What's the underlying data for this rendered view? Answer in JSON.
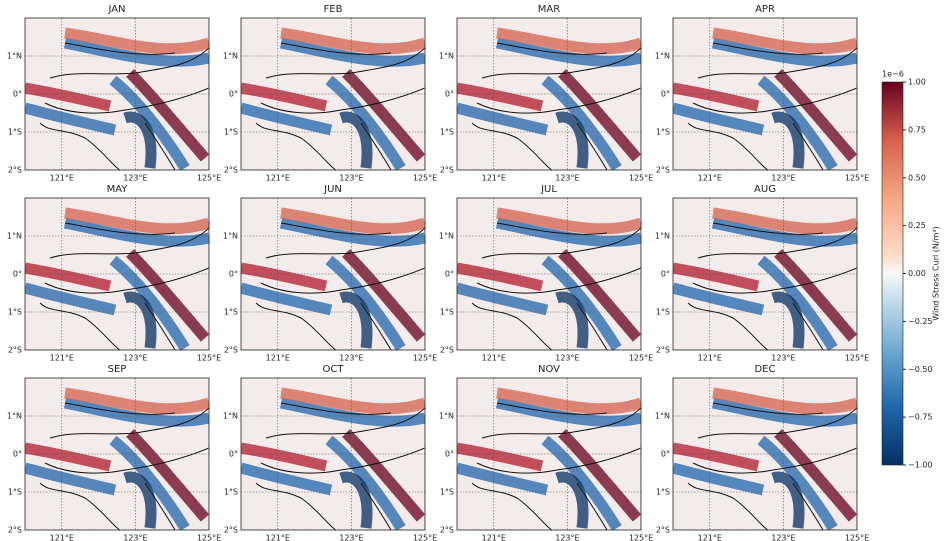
{
  "chart_data": {
    "type": "map-grid",
    "panels": [
      "JAN",
      "FEB",
      "MAR",
      "APR",
      "MAY",
      "JUN",
      "JUL",
      "AUG",
      "SEP",
      "OCT",
      "NOV",
      "DEC"
    ],
    "xlim": [
      120,
      125
    ],
    "xticks": [
      {
        "value": 121,
        "label": "121°E"
      },
      {
        "value": 123,
        "label": "123°E"
      },
      {
        "value": 125,
        "label": "125°E"
      }
    ],
    "ylim": [
      -2,
      2
    ],
    "yticks": [
      {
        "value": -2,
        "label": "2°S"
      },
      {
        "value": -1,
        "label": "1°S"
      },
      {
        "value": 0,
        "label": "0°"
      },
      {
        "value": 1,
        "label": "1°N"
      }
    ],
    "colorbar": {
      "label": "Wind Stress Curl (N/m³)",
      "exponent": "1e−6",
      "lim": [
        -1,
        1
      ],
      "ticks": [
        {
          "value": -1,
          "label": "−1.00"
        },
        {
          "value": -0.75,
          "label": "−0.75"
        },
        {
          "value": -0.5,
          "label": "−0.50"
        },
        {
          "value": -0.25,
          "label": "−0.25"
        },
        {
          "value": 0,
          "label": "0.00"
        },
        {
          "value": 0.25,
          "label": "0.25"
        },
        {
          "value": 0.5,
          "label": "0.50"
        },
        {
          "value": 0.75,
          "label": "0.75"
        },
        {
          "value": 1,
          "label": "1.00"
        }
      ]
    }
  }
}
